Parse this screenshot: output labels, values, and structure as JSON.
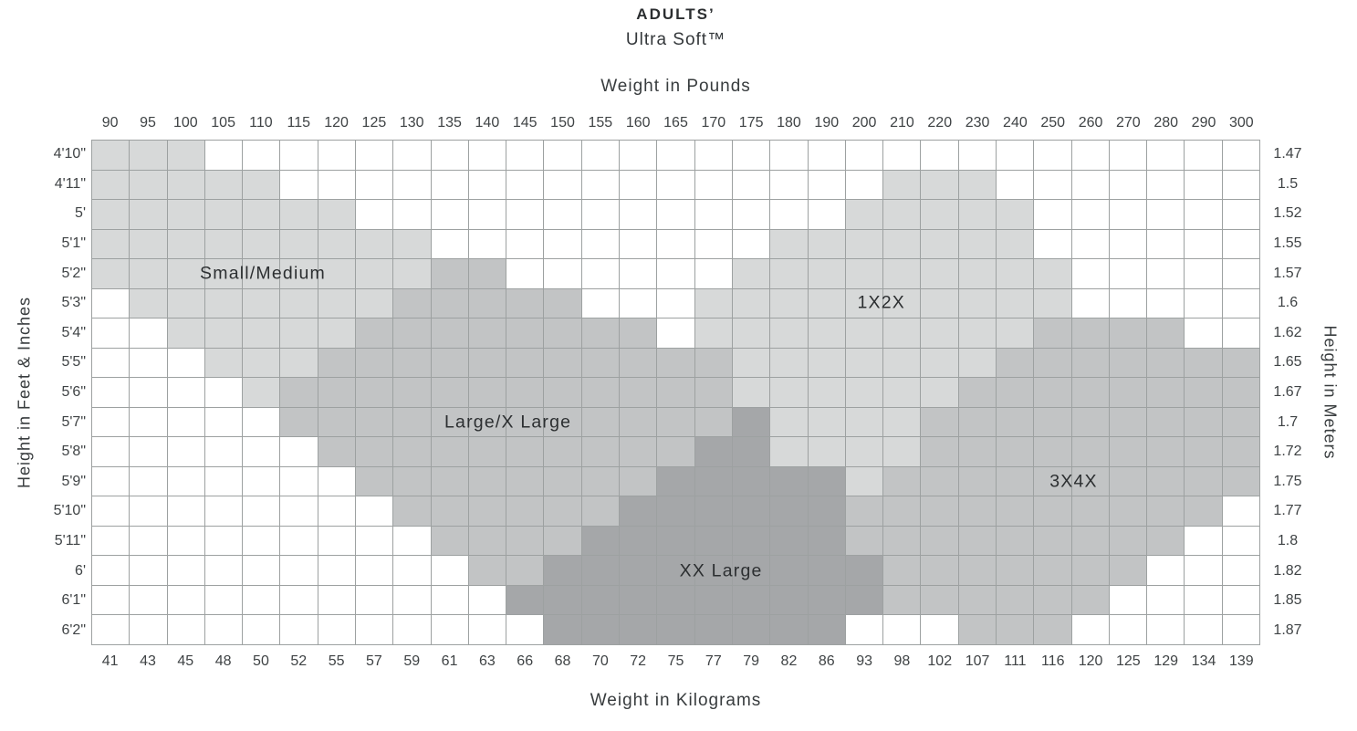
{
  "title": "ADULTS’",
  "subtitle": "Ultra Soft™",
  "axes": {
    "top": "Weight in Pounds",
    "bottom": "Weight in Kilograms",
    "left": "Height in Feet & Inches",
    "right": "Height in Meters"
  },
  "chart_data": {
    "type": "heatmap",
    "columns_pounds": [
      90,
      95,
      100,
      105,
      110,
      115,
      120,
      125,
      130,
      135,
      140,
      145,
      150,
      155,
      160,
      165,
      170,
      175,
      180,
      190,
      200,
      210,
      220,
      230,
      240,
      250,
      260,
      270,
      280,
      290,
      300
    ],
    "columns_kilograms": [
      41,
      43,
      45,
      48,
      50,
      52,
      55,
      57,
      59,
      61,
      63,
      66,
      68,
      70,
      72,
      75,
      77,
      79,
      82,
      86,
      93,
      98,
      102,
      107,
      111,
      116,
      120,
      125,
      129,
      134,
      139
    ],
    "rows_feet_inches": [
      "4'10\"",
      "4'11\"",
      "5'",
      "5'1\"",
      "5'2\"",
      "5'3\"",
      "5'4\"",
      "5'5\"",
      "5'6\"",
      "5'7\"",
      "5'8\"",
      "5'9\"",
      "5'10\"",
      "5'11\"",
      "6'",
      "6'1\"",
      "6'2\""
    ],
    "rows_meters": [
      "1.47",
      "1.5",
      "1.52",
      "1.55",
      "1.57",
      "1.6",
      "1.62",
      "1.65",
      "1.67",
      "1.7",
      "1.72",
      "1.75",
      "1.77",
      "1.8",
      "1.82",
      "1.85",
      "1.87"
    ],
    "cell_codes": {
      "0": "none",
      "1": "light",
      "2": "medium",
      "3": "dark"
    },
    "grid": [
      "1110000000000000000000000000000",
      "1111100000000000000001110000000",
      "1111111000000000000011111000000",
      "1111111110000000001111111000000",
      "1111111112200000011111111100000",
      "0111111122222000111111111100000",
      "0011111222222220111111111222200",
      "0001112222222222211111112222222",
      "0000122222222222211111122222222",
      "0000022222222222231111222222222",
      "0000002222222222331111222222222",
      "0000000222222223333312222222222",
      "0000000022222233333322222222220",
      "0000000002222333333322222222200",
      "0000000000223333333332222222000",
      "0000000000033333333332222220000",
      "0000000000003333333300022200000"
    ],
    "regions": [
      {
        "label": "Small/Medium",
        "shade": "light",
        "row": 4,
        "col_center": 4.55
      },
      {
        "label": "1X2X",
        "shade": "light",
        "row": 5,
        "col_center": 20.95
      },
      {
        "label": "Large/X Large",
        "shade": "medium",
        "row": 9,
        "col_center": 11.05
      },
      {
        "label": "XX Large",
        "shade": "dark",
        "row": 14,
        "col_center": 16.7
      },
      {
        "label": "3X4X",
        "shade": "medium",
        "row": 11,
        "col_center": 26.05
      }
    ],
    "layout": {
      "grid_on": true,
      "legend_position": "labels-inside"
    },
    "colors": {
      "cell_light": "#d7d9d9",
      "cell_medium": "#c2c4c5",
      "cell_dark": "#a5a7a9",
      "grid_line": "#9da1a1",
      "background": "#ffffff",
      "text": "#3f4345"
    }
  }
}
